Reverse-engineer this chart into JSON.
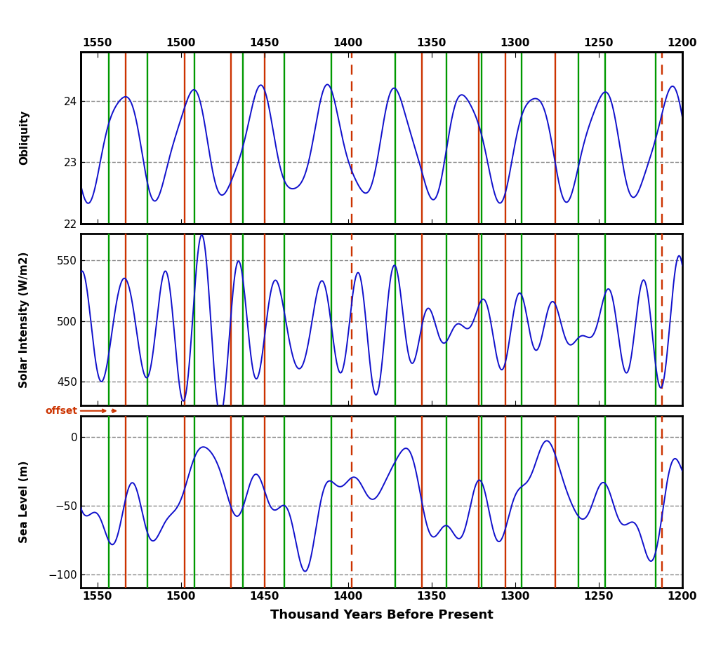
{
  "title_x": "Thousand Years Before Present",
  "x_min": 1200,
  "x_max": 1560,
  "x_ticks": [
    1200,
    1250,
    1300,
    1350,
    1400,
    1450,
    1500,
    1550
  ],
  "obliquity_ylim": [
    22.0,
    24.8
  ],
  "obliquity_yticks": [
    22,
    23,
    24
  ],
  "obliquity_ylabel": "Obliquity",
  "solar_ylim": [
    430,
    572
  ],
  "solar_yticks": [
    450,
    500,
    550
  ],
  "solar_ylabel": "Solar Intensity (W/m2)",
  "sealevel_ylim": [
    -110,
    15
  ],
  "sealevel_yticks": [
    -100,
    -50,
    0
  ],
  "sealevel_ylabel": "Sea Level (m)",
  "line_color": "#1010cc",
  "green_color": "#009900",
  "red_color": "#cc3300",
  "green_lines": [
    1543,
    1520,
    1492,
    1463,
    1438,
    1410,
    1372,
    1341,
    1320,
    1296,
    1262,
    1246,
    1216
  ],
  "red_solid_lines": [
    1533,
    1498,
    1470,
    1450,
    1356,
    1322,
    1306,
    1276
  ],
  "red_dashed_lines": [
    1398,
    1212
  ],
  "background_color": "#ffffff"
}
